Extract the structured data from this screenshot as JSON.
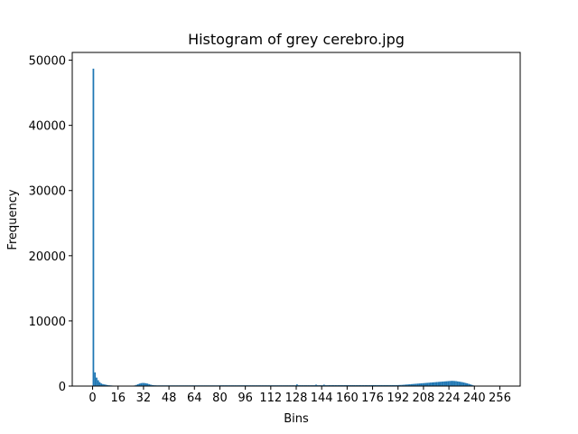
{
  "chart_data": {
    "type": "histogram",
    "title": "Histogram of grey cerebro.jpg",
    "xlabel": "Bins",
    "ylabel": "Frequency",
    "color": "#1f77b4",
    "bins": [
      0,
      1,
      2,
      3,
      4,
      5,
      6,
      7,
      8,
      9,
      10,
      11,
      12,
      13,
      14,
      15,
      16,
      17,
      18,
      19,
      20,
      21,
      22,
      23,
      24,
      25,
      26,
      27,
      28,
      29,
      30,
      31,
      32,
      33,
      34,
      35,
      36,
      37,
      38,
      39,
      40,
      41,
      42,
      43,
      44,
      45,
      46,
      47,
      48,
      49,
      50,
      51,
      52,
      53,
      54,
      55,
      56,
      57,
      58,
      59,
      60,
      61,
      62,
      63,
      64,
      65,
      66,
      67,
      68,
      69,
      70,
      71,
      72,
      73,
      74,
      75,
      76,
      77,
      78,
      79,
      80,
      81,
      82,
      83,
      84,
      85,
      86,
      87,
      88,
      89,
      90,
      91,
      92,
      93,
      94,
      95,
      96,
      97,
      98,
      99,
      100,
      101,
      102,
      103,
      104,
      105,
      106,
      107,
      108,
      109,
      110,
      111,
      112,
      113,
      114,
      115,
      116,
      117,
      118,
      119,
      120,
      121,
      122,
      123,
      124,
      125,
      126,
      127,
      128,
      129,
      130,
      131,
      132,
      133,
      134,
      135,
      136,
      137,
      138,
      139,
      140,
      141,
      142,
      143,
      144,
      145,
      146,
      147,
      148,
      149,
      150,
      151,
      152,
      153,
      154,
      155,
      156,
      157,
      158,
      159,
      160,
      161,
      162,
      163,
      164,
      165,
      166,
      167,
      168,
      169,
      170,
      171,
      172,
      173,
      174,
      175,
      176,
      177,
      178,
      179,
      180,
      181,
      182,
      183,
      184,
      185,
      186,
      187,
      188,
      189,
      190,
      191,
      192,
      193,
      194,
      195,
      196,
      197,
      198,
      199,
      200,
      201,
      202,
      203,
      204,
      205,
      206,
      207,
      208,
      209,
      210,
      211,
      212,
      213,
      214,
      215,
      216,
      217,
      218,
      219,
      220,
      221,
      222,
      223,
      224,
      225,
      226,
      227,
      228,
      229,
      230,
      231,
      232,
      233,
      234,
      235,
      236,
      237,
      238,
      239,
      240,
      241,
      242,
      243,
      244,
      245,
      246,
      247,
      248,
      249,
      250,
      251,
      252,
      253,
      254,
      255,
      256
    ],
    "values": [
      48700,
      2100,
      1300,
      900,
      600,
      400,
      300,
      250,
      200,
      150,
      120,
      100,
      80,
      60,
      50,
      40,
      30,
      30,
      30,
      30,
      30,
      30,
      30,
      30,
      40,
      60,
      100,
      180,
      280,
      380,
      450,
      480,
      470,
      430,
      380,
      300,
      220,
      160,
      130,
      120,
      110,
      110,
      110,
      110,
      110,
      110,
      110,
      110,
      110,
      110,
      110,
      110,
      110,
      110,
      110,
      110,
      110,
      110,
      110,
      110,
      110,
      110,
      110,
      110,
      110,
      110,
      110,
      110,
      110,
      110,
      110,
      110,
      110,
      110,
      110,
      110,
      110,
      110,
      110,
      110,
      120,
      120,
      120,
      120,
      120,
      120,
      120,
      120,
      120,
      120,
      120,
      120,
      120,
      120,
      120,
      120,
      120,
      120,
      120,
      120,
      120,
      120,
      120,
      120,
      120,
      120,
      120,
      120,
      120,
      120,
      120,
      120,
      120,
      120,
      120,
      120,
      120,
      120,
      120,
      120,
      120,
      120,
      120,
      120,
      120,
      120,
      120,
      120,
      260,
      130,
      130,
      130,
      130,
      130,
      130,
      130,
      130,
      130,
      130,
      130,
      220,
      130,
      130,
      130,
      130,
      220,
      130,
      130,
      140,
      140,
      140,
      140,
      140,
      140,
      140,
      140,
      140,
      140,
      140,
      140,
      140,
      140,
      140,
      140,
      140,
      140,
      140,
      140,
      140,
      140,
      140,
      140,
      140,
      140,
      140,
      140,
      150,
      150,
      150,
      150,
      150,
      150,
      150,
      150,
      150,
      150,
      150,
      150,
      150,
      150,
      150,
      150,
      160,
      170,
      180,
      200,
      220,
      240,
      260,
      280,
      300,
      320,
      340,
      360,
      380,
      400,
      420,
      440,
      460,
      480,
      500,
      520,
      540,
      560,
      580,
      600,
      620,
      640,
      660,
      680,
      700,
      720,
      740,
      760,
      780,
      800,
      800,
      780,
      760,
      720,
      680,
      640,
      600,
      540,
      480,
      420,
      340,
      260,
      180,
      100,
      40,
      10,
      0,
      0,
      0,
      0,
      0,
      0,
      0,
      0,
      0,
      0,
      0,
      0,
      0,
      0
    ],
    "xlim": [
      -12.8,
      268.8
    ],
    "ylim": [
      0,
      51188
    ],
    "xticks": [
      0,
      16,
      32,
      48,
      64,
      80,
      96,
      112,
      128,
      144,
      160,
      176,
      192,
      208,
      224,
      240,
      256
    ],
    "yticks": [
      0,
      10000,
      20000,
      30000,
      40000,
      50000
    ]
  }
}
